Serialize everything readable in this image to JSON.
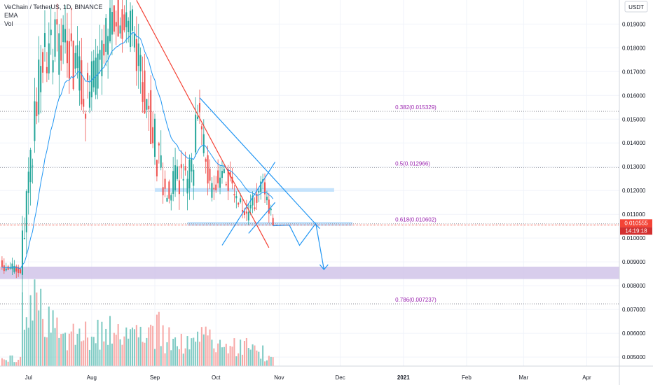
{
  "header": {
    "symbol_line": "VeChain / TetherUS, 1D, BINANCE",
    "ema_label": "EMA",
    "vol_label": "Vol"
  },
  "axis": {
    "currency_badge": "USDT"
  },
  "price_marker": {
    "price": "0.010555",
    "countdown": "14:19:18"
  },
  "colors": {
    "up": "#26a69a",
    "down": "#ef5350",
    "up_volume": "#80cbc4",
    "down_volume": "#f7a9a7",
    "ema": "#2196f3",
    "fib_text": "#9c27b0",
    "trendline_red": "#f44336",
    "pattern_blue": "#2196f3",
    "zone_purple": "#d1c4e9",
    "zone_blue": "#bbdefb",
    "price_line": "#f44336"
  },
  "chart_data": {
    "type": "candlestick",
    "ylim": [
      0.00462,
      0.02001
    ],
    "y_ticks": [
      {
        "value": 0.005,
        "label": "0.005000"
      },
      {
        "value": 0.006,
        "label": "0.006000"
      },
      {
        "value": 0.007,
        "label": "0.007000"
      },
      {
        "value": 0.008,
        "label": "0.008000"
      },
      {
        "value": 0.009,
        "label": "0.009000"
      },
      {
        "value": 0.01,
        "label": "0.010000"
      },
      {
        "value": 0.011,
        "label": "0.011000"
      },
      {
        "value": 0.012,
        "label": "0.012000"
      },
      {
        "value": 0.013,
        "label": "0.013000"
      },
      {
        "value": 0.014,
        "label": "0.014000"
      },
      {
        "value": 0.015,
        "label": "0.015000"
      },
      {
        "value": 0.016,
        "label": "0.016000"
      },
      {
        "value": 0.017,
        "label": "0.017000"
      },
      {
        "value": 0.018,
        "label": "0.018000"
      },
      {
        "value": 0.019,
        "label": "0.019000"
      }
    ],
    "x_ticks": [
      {
        "date": "2020-07-01",
        "label": "Jul"
      },
      {
        "date": "2020-08-01",
        "label": "Aug"
      },
      {
        "date": "2020-09-01",
        "label": "Sep"
      },
      {
        "date": "2020-10-01",
        "label": "Oct"
      },
      {
        "date": "2020-11-01",
        "label": "Nov"
      },
      {
        "date": "2020-12-01",
        "label": "Dec"
      },
      {
        "date": "2021-01-01",
        "label": "2021"
      },
      {
        "date": "2021-02-01",
        "label": "Feb"
      },
      {
        "date": "2021-03-01",
        "label": "Mar"
      },
      {
        "date": "2021-04-01",
        "label": "Apr"
      }
    ],
    "date_range": [
      "2020-06-17",
      "2021-04-17"
    ],
    "price_segments": [
      {
        "from": "2020-06-18",
        "to": "2020-06-28",
        "start": 0.0088,
        "end": 0.0086,
        "vol": 0.06,
        "volatility": 0.0006
      },
      {
        "from": "2020-06-28",
        "to": "2020-07-08",
        "start": 0.0086,
        "end": 0.0175,
        "vol": 0.55,
        "volatility": 0.002
      },
      {
        "from": "2020-07-08",
        "to": "2020-07-18",
        "start": 0.0175,
        "end": 0.0182,
        "vol": 0.35,
        "volatility": 0.0025
      },
      {
        "from": "2020-07-18",
        "to": "2020-07-30",
        "start": 0.0182,
        "end": 0.0162,
        "vol": 0.25,
        "volatility": 0.0025
      },
      {
        "from": "2020-07-30",
        "to": "2020-08-13",
        "start": 0.0162,
        "end": 0.0192,
        "vol": 0.28,
        "volatility": 0.0022
      },
      {
        "from": "2020-08-13",
        "to": "2020-08-22",
        "start": 0.0192,
        "end": 0.0188,
        "vol": 0.25,
        "volatility": 0.0018
      },
      {
        "from": "2020-08-22",
        "to": "2020-09-06",
        "start": 0.0188,
        "end": 0.0122,
        "vol": 0.3,
        "volatility": 0.0022
      },
      {
        "from": "2020-09-06",
        "to": "2020-09-20",
        "start": 0.0122,
        "end": 0.0128,
        "vol": 0.22,
        "volatility": 0.0016
      },
      {
        "from": "2020-09-20",
        "to": "2020-09-23",
        "start": 0.0128,
        "end": 0.0152,
        "vol": 0.28,
        "volatility": 0.0016
      },
      {
        "from": "2020-09-23",
        "to": "2020-09-29",
        "start": 0.0152,
        "end": 0.0122,
        "vol": 0.24,
        "volatility": 0.0014
      },
      {
        "from": "2020-09-29",
        "to": "2020-10-05",
        "start": 0.0122,
        "end": 0.0128,
        "vol": 0.15,
        "volatility": 0.0012
      },
      {
        "from": "2020-10-05",
        "to": "2020-10-17",
        "start": 0.0128,
        "end": 0.0108,
        "vol": 0.16,
        "volatility": 0.001
      },
      {
        "from": "2020-10-17",
        "to": "2020-10-25",
        "start": 0.0108,
        "end": 0.0123,
        "vol": 0.12,
        "volatility": 0.0009
      },
      {
        "from": "2020-10-25",
        "to": "2020-10-30",
        "start": 0.0123,
        "end": 0.010555,
        "vol": 0.08,
        "volatility": 0.0008
      }
    ],
    "series": [
      {
        "name": "VeChain / TetherUS, 1D, BINANCE",
        "kind": "candles"
      },
      {
        "name": "EMA",
        "kind": "line"
      },
      {
        "name": "Vol",
        "kind": "histogram"
      }
    ],
    "fib_levels": [
      {
        "label": "0.382(0.015329)",
        "value": 0.015329
      },
      {
        "label": "0.5(0.012966)",
        "value": 0.012966
      },
      {
        "label": "0.618(0.010602)",
        "value": 0.010602
      },
      {
        "label": "0.786(0.007237)",
        "value": 0.007237
      }
    ],
    "fib_line_start": "2020-06-17",
    "fib_label_date": "2020-12-28",
    "zones": [
      {
        "name": "support-zone",
        "from": "2020-06-17",
        "to": "2021-04-17",
        "low": 0.00828,
        "high": 0.0088,
        "color": "#d1c4e9"
      },
      {
        "name": "resistance-zone",
        "from": "2020-09-01",
        "to": "2020-11-28",
        "low": 0.01195,
        "high": 0.0121,
        "color": "#bbdefb"
      },
      {
        "name": "fib-zone",
        "from": "2020-09-17",
        "to": "2020-12-07",
        "low": 0.01052,
        "high": 0.01068,
        "color": "#bbdefb"
      }
    ],
    "trendlines": [
      {
        "name": "red-downtrend-line",
        "color": "#f44336",
        "points": [
          [
            "2020-08-23",
            0.02
          ],
          [
            "2020-10-27",
            0.0096
          ]
        ]
      },
      {
        "name": "channel-upper-line",
        "color": "#2196f3",
        "points": [
          [
            "2020-09-23",
            0.0159
          ],
          [
            "2020-11-21",
            0.0104
          ]
        ]
      },
      {
        "name": "channel-lower-line",
        "color": "#2196f3",
        "points": [
          [
            "2020-10-04",
            0.0097
          ],
          [
            "2020-10-30",
            0.0132
          ]
        ]
      },
      {
        "name": "flag-lower-line",
        "color": "#2196f3",
        "points": [
          [
            "2020-10-17",
            0.0102
          ],
          [
            "2020-10-30",
            0.0115
          ]
        ]
      },
      {
        "name": "projection-path",
        "color": "#2196f3",
        "points": [
          [
            "2020-10-29",
            0.01052
          ],
          [
            "2020-11-06",
            0.01055
          ],
          [
            "2020-11-11",
            0.0097
          ],
          [
            "2020-11-19",
            0.01062
          ],
          [
            "2020-11-23",
            0.00868
          ]
        ]
      }
    ],
    "price_line": {
      "value": 0.010555,
      "label": "0.010555"
    }
  }
}
